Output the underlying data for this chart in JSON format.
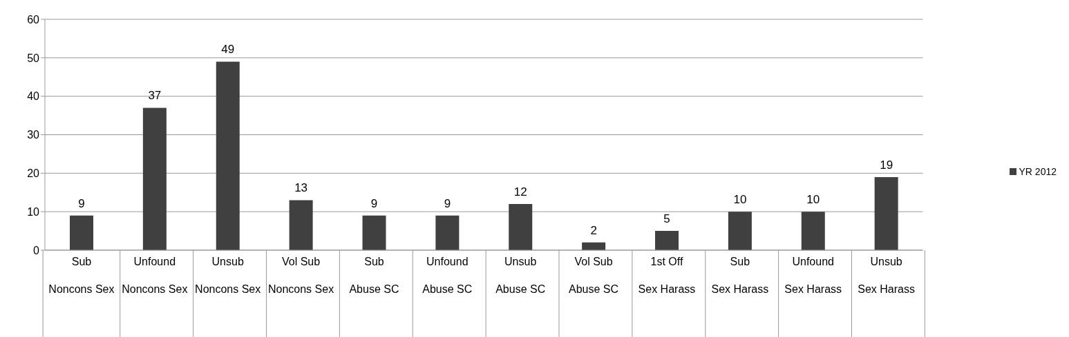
{
  "chart_data": {
    "type": "bar",
    "categories": [
      "Sub\nNoncons Sex",
      "Unfound\nNoncons Sex",
      "Unsub\nNoncons Sex",
      "Vol Sub\nNoncons Sex",
      "Sub\nAbuse SC",
      "Unfound\nAbuse SC",
      "Unsub\nAbuse SC",
      "Vol Sub\nAbuse SC",
      "1st Off\nSex Harass",
      "Sub\nSex Harass",
      "Unfound\nSex Harass",
      "Unsub\nSex Harass"
    ],
    "series": [
      {
        "name": "YR 2012",
        "color": "#404040",
        "values": [
          9,
          37,
          49,
          13,
          9,
          9,
          12,
          2,
          5,
          10,
          10,
          19
        ]
      }
    ],
    "ylim": [
      0,
      60
    ],
    "yticks": [
      0,
      10,
      20,
      30,
      40,
      50,
      60
    ],
    "grid": "y",
    "legend": "right",
    "data_labels": true
  }
}
